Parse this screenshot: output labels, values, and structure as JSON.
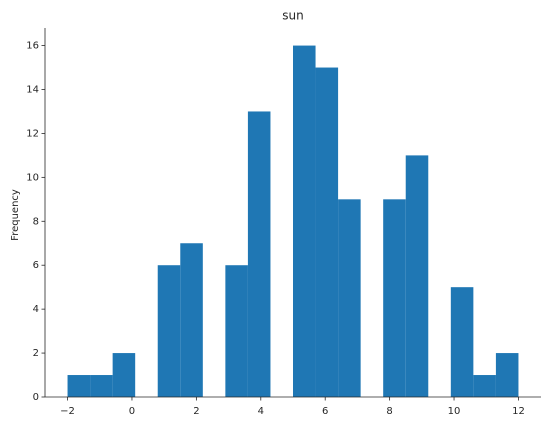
{
  "chart_data": {
    "type": "histogram",
    "title": "sun",
    "ylabel": "Frequency",
    "bins": [
      -2,
      -1.3,
      -0.6,
      0.1,
      0.8,
      1.5,
      2.2,
      2.9,
      3.6,
      4.3,
      5.0,
      5.7,
      6.4,
      7.1,
      7.8,
      8.5,
      9.2,
      9.9,
      10.6,
      11.3,
      12
    ],
    "values": [
      1,
      1,
      2,
      0,
      6,
      7,
      0,
      6,
      13,
      0,
      16,
      15,
      9,
      0,
      9,
      11,
      0,
      5,
      1,
      2
    ],
    "color": "#1f77b4",
    "xlim": [
      -2.7,
      12.7
    ],
    "xticks": [
      {
        "value": -2,
        "label": "−2"
      },
      0,
      2,
      4,
      6,
      8,
      10,
      12
    ],
    "ylim": [
      0,
      16.8
    ],
    "yticks": [
      0,
      2,
      4,
      6,
      8,
      10,
      12,
      14,
      16
    ]
  }
}
